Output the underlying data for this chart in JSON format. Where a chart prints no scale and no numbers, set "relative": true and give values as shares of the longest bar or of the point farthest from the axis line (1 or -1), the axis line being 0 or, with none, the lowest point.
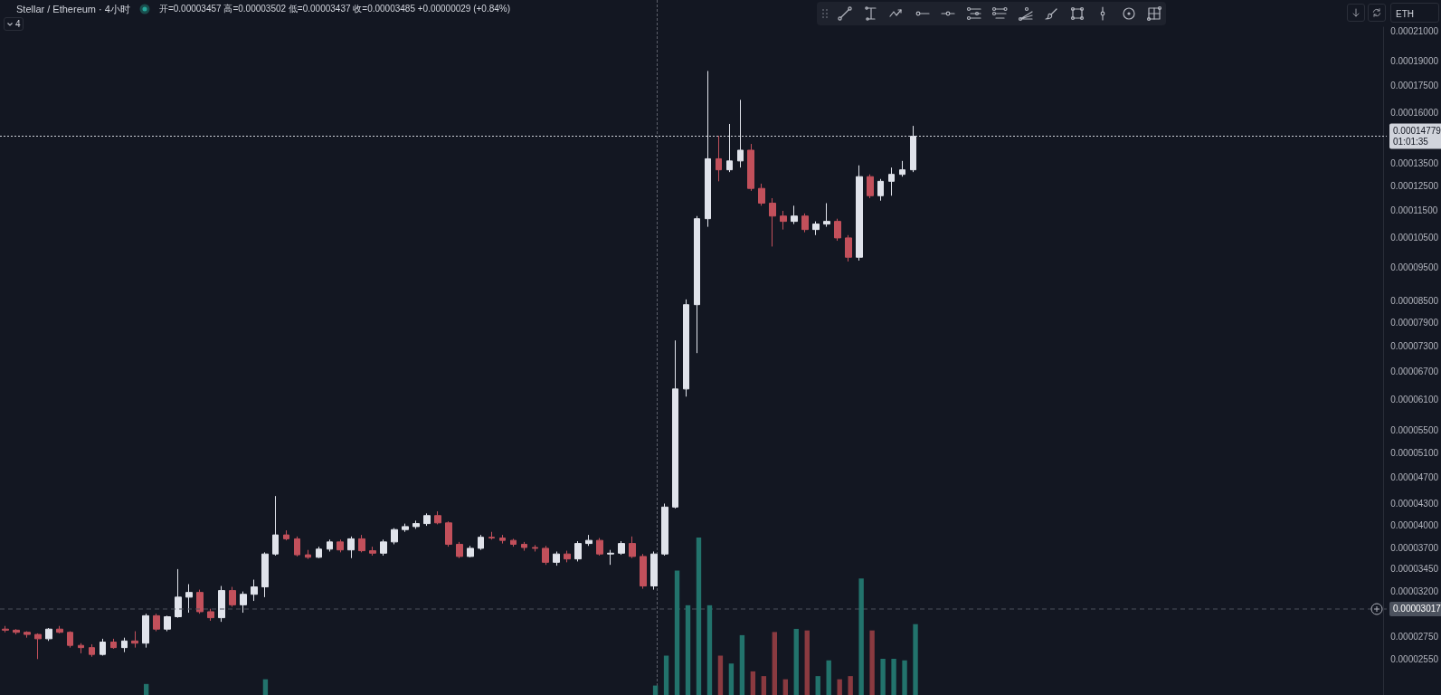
{
  "chart_data": [
    {
      "type": "candlestick",
      "title": "Stellar / Ethereum · 4小时",
      "subtitle": "开=0.00003457 高=0.00003502 低=0.00003437 收=0.00003485 +0.00000029 (+0.84%)",
      "annotations": [
        "4",
        "ETH"
      ],
      "categories": [
        null,
        null,
        null,
        null,
        null,
        null,
        null,
        null,
        null,
        null,
        null,
        null,
        null,
        null,
        null,
        null,
        null,
        null,
        null,
        null,
        null,
        null,
        null,
        null,
        null,
        null,
        null,
        null,
        null,
        null,
        null,
        null,
        null,
        null,
        null,
        null,
        null,
        null,
        null,
        null,
        null,
        null,
        null,
        null,
        null,
        null,
        null,
        null,
        null,
        null,
        null,
        null,
        null,
        null,
        null,
        null,
        null,
        null,
        null,
        null,
        null,
        null,
        null,
        null,
        null,
        null,
        null,
        null,
        null,
        null,
        null,
        null,
        null,
        null,
        null,
        null,
        null,
        null,
        null,
        null,
        null,
        null,
        null,
        null,
        null,
        null,
        null,
        null,
        null,
        null,
        null,
        null,
        null,
        null,
        null,
        null,
        null,
        null,
        null,
        null,
        null,
        null,
        null,
        null,
        null,
        null,
        null,
        null,
        null,
        null,
        null,
        null,
        null,
        null,
        null,
        null,
        null,
        null,
        null,
        null,
        null,
        null,
        null,
        null,
        null,
        null,
        null,
        null
      ],
      "ohlc": [
        [
          2.82e-05,
          2.85e-05,
          2.79e-05,
          2.81e-05
        ],
        [
          2.81e-05,
          2.82e-05,
          2.77e-05,
          2.79e-05
        ],
        [
          2.79e-05,
          2.8e-05,
          2.74e-05,
          2.77e-05
        ],
        [
          2.77e-05,
          2.78e-05,
          2.55e-05,
          2.73e-05
        ],
        [
          2.73e-05,
          2.83e-05,
          2.71e-05,
          2.82e-05
        ],
        [
          2.82e-05,
          2.85e-05,
          2.78e-05,
          2.79e-05
        ],
        [
          2.79e-05,
          2.8e-05,
          2.65e-05,
          2.67e-05
        ],
        [
          2.67e-05,
          2.69e-05,
          2.6e-05,
          2.65e-05
        ],
        [
          2.65e-05,
          2.68e-05,
          2.57e-05,
          2.59e-05
        ],
        [
          2.59e-05,
          2.73e-05,
          2.58e-05,
          2.7e-05
        ],
        [
          2.7e-05,
          2.73e-05,
          2.64e-05,
          2.65e-05
        ],
        [
          2.65e-05,
          2.74e-05,
          2.61e-05,
          2.71e-05
        ],
        [
          2.71e-05,
          2.8e-05,
          2.65e-05,
          2.69e-05
        ],
        [
          2.69e-05,
          2.97e-05,
          2.65e-05,
          2.95e-05
        ],
        [
          2.95e-05,
          2.97e-05,
          2.8e-05,
          2.82e-05
        ],
        [
          2.82e-05,
          2.95e-05,
          2.8e-05,
          2.94e-05
        ],
        [
          2.94e-05,
          3.45e-05,
          2.93e-05,
          3.14e-05
        ],
        [
          3.14e-05,
          3.28e-05,
          2.98e-05,
          3.19e-05
        ],
        [
          3.19e-05,
          3.22e-05,
          2.97e-05,
          2.99e-05
        ],
        [
          2.99e-05,
          3.02e-05,
          2.9e-05,
          2.93e-05
        ],
        [
          2.93e-05,
          3.26e-05,
          2.89e-05,
          3.21e-05
        ],
        [
          3.21e-05,
          3.25e-05,
          3.04e-05,
          3.06e-05
        ],
        [
          3.06e-05,
          3.2e-05,
          2.98e-05,
          3.17e-05
        ],
        [
          3.17e-05,
          3.33e-05,
          3.1e-05,
          3.25e-05
        ],
        [
          3.25e-05,
          3.65e-05,
          3.14e-05,
          3.63e-05
        ],
        [
          3.63e-05,
          4.41e-05,
          3.61e-05,
          3.87e-05
        ],
        [
          3.87e-05,
          3.93e-05,
          3.8e-05,
          3.82e-05
        ],
        [
          3.82e-05,
          3.85e-05,
          3.6e-05,
          3.62e-05
        ],
        [
          3.62e-05,
          3.68e-05,
          3.57e-05,
          3.59e-05
        ],
        [
          3.59e-05,
          3.72e-05,
          3.58e-05,
          3.69e-05
        ],
        [
          3.69e-05,
          3.81e-05,
          3.66e-05,
          3.78e-05
        ],
        [
          3.78e-05,
          3.81e-05,
          3.65e-05,
          3.68e-05
        ],
        [
          3.68e-05,
          3.85e-05,
          3.58e-05,
          3.82e-05
        ],
        [
          3.82e-05,
          3.87e-05,
          3.65e-05,
          3.67e-05
        ],
        [
          3.67e-05,
          3.72e-05,
          3.61e-05,
          3.64e-05
        ],
        [
          3.64e-05,
          3.81e-05,
          3.61e-05,
          3.78e-05
        ],
        [
          3.78e-05,
          3.96e-05,
          3.75e-05,
          3.94e-05
        ],
        [
          3.94e-05,
          4.02e-05,
          3.91e-05,
          3.98e-05
        ],
        [
          3.98e-05,
          4.06e-05,
          3.95e-05,
          4.02e-05
        ],
        [
          4.02e-05,
          4.16e-05,
          3.99e-05,
          4.13e-05
        ],
        [
          4.13e-05,
          4.19e-05,
          4.01e-05,
          4.03e-05
        ],
        [
          4.03e-05,
          4.05e-05,
          3.72e-05,
          3.75e-05
        ],
        [
          3.75e-05,
          3.78e-05,
          3.58e-05,
          3.6e-05
        ],
        [
          3.6e-05,
          3.73e-05,
          3.59e-05,
          3.7e-05
        ],
        [
          3.7e-05,
          3.87e-05,
          3.68e-05,
          3.84e-05
        ],
        [
          3.84e-05,
          3.91e-05,
          3.81e-05,
          3.83e-05
        ],
        [
          3.83e-05,
          3.87e-05,
          3.76e-05,
          3.8e-05
        ],
        [
          3.8e-05,
          3.82e-05,
          3.72e-05,
          3.75e-05
        ],
        [
          3.75e-05,
          3.78e-05,
          3.67e-05,
          3.71e-05
        ],
        [
          3.71e-05,
          3.74e-05,
          3.66e-05,
          3.7e-05
        ],
        [
          3.7e-05,
          3.73e-05,
          3.5e-05,
          3.53e-05
        ],
        [
          3.53e-05,
          3.66e-05,
          3.49e-05,
          3.63e-05
        ],
        [
          3.63e-05,
          3.67e-05,
          3.53e-05,
          3.57e-05
        ],
        [
          3.57e-05,
          3.79e-05,
          3.54e-05,
          3.76e-05
        ],
        [
          3.76e-05,
          3.87e-05,
          3.73e-05,
          3.8e-05
        ],
        [
          3.8e-05,
          3.83e-05,
          3.61e-05,
          3.63e-05
        ],
        [
          3.63e-05,
          3.68e-05,
          3.5e-05,
          3.64e-05
        ],
        [
          3.64e-05,
          3.79e-05,
          3.62e-05,
          3.76e-05
        ],
        [
          3.76e-05,
          3.85e-05,
          3.58e-05,
          3.6e-05
        ],
        [
          3.6e-05,
          3.63e-05,
          3.23e-05,
          3.26e-05
        ],
        [
          3.26e-05,
          3.66e-05,
          3.22e-05,
          3.63e-05
        ],
        [
          3.63e-05,
          4.3e-05,
          3.61e-05,
          4.25e-05
        ],
        [
          4.25e-05,
          7.44e-05,
          4.23e-05,
          6.32e-05
        ],
        [
          6.32e-05,
          8.54e-05,
          6.16e-05,
          8.39e-05
        ],
        [
          8.39e-05,
          0.000113,
          7.13e-05,
          0.000112
        ],
        [
          0.000112,
          0.000184,
          0.000109,
          0.000137
        ],
        [
          0.000137,
          0.000148,
          0.000127,
          0.000132
        ],
        [
          0.000132,
          0.000154,
          0.000131,
          0.000136
        ],
        [
          0.000136,
          0.000167,
          0.000133,
          0.000141
        ],
        [
          0.000141,
          0.000144,
          0.000123,
          0.000124
        ],
        [
          0.000124,
          0.000126,
          0.000117,
          0.000118
        ],
        [
          0.000118,
          0.00012,
          0.000102,
          0.000113
        ],
        [
          0.000113,
          0.000115,
          0.000108,
          0.000111
        ],
        [
          0.000111,
          0.000117,
          0.00011,
          0.000113
        ],
        [
          0.000113,
          0.000114,
          0.000107,
          0.000108
        ],
        [
          0.000108,
          0.000111,
          0.000106,
          0.00011
        ],
        [
          0.00011,
          0.000118,
          0.000109,
          0.000111
        ],
        [
          0.000111,
          0.000112,
          0.000104,
          0.000105
        ],
        [
          0.000105,
          0.000106,
          9.7e-05,
          9.84e-05
        ],
        [
          9.84e-05,
          0.000134,
          9.73e-05,
          0.000129
        ],
        [
          0.000129,
          0.00013,
          0.00012,
          0.000121
        ],
        [
          0.000121,
          0.000128,
          0.000119,
          0.000127
        ],
        [
          0.000127,
          0.000133,
          0.000121,
          0.00013
        ],
        [
          0.00013,
          0.000136,
          0.000129,
          0.000132
        ],
        [
          0.000132,
          0.000153,
          0.000131,
          0.00014779
        ],
        null,
        null,
        null,
        null,
        null,
        null,
        null,
        null,
        null,
        null,
        null,
        null,
        null,
        null,
        null,
        null,
        null,
        null,
        null,
        null,
        null,
        null,
        null,
        null,
        null,
        null,
        null,
        null,
        null,
        null,
        null,
        null,
        null,
        null,
        null,
        null,
        null,
        null,
        null,
        null,
        null,
        null,
        null
      ],
      "colors": [
        "#c2505b",
        "#c2505b",
        "#c2505b",
        "#c2505b",
        "#e0e3eb",
        "#c2505b",
        "#c2505b",
        "#c2505b",
        "#c2505b",
        "#e0e3eb",
        "#c2505b",
        "#e0e3eb",
        "#c2505b",
        "#e0e3eb",
        "#c2505b",
        "#e0e3eb",
        "#e0e3eb",
        "#e0e3eb",
        "#c2505b",
        "#c2505b",
        "#e0e3eb",
        "#c2505b",
        "#e0e3eb",
        "#e0e3eb",
        "#e0e3eb",
        "#e0e3eb",
        "#c2505b",
        "#c2505b",
        "#c2505b",
        "#e0e3eb",
        "#e0e3eb",
        "#c2505b",
        "#e0e3eb",
        "#c2505b",
        "#c2505b",
        "#e0e3eb",
        "#e0e3eb",
        "#e0e3eb",
        "#e0e3eb",
        "#e0e3eb",
        "#c2505b",
        "#c2505b",
        "#c2505b",
        "#e0e3eb",
        "#e0e3eb",
        "#c2505b",
        "#c2505b",
        "#c2505b",
        "#c2505b",
        "#c2505b",
        "#c2505b",
        "#e0e3eb",
        "#c2505b",
        "#e0e3eb",
        "#e0e3eb",
        "#c2505b",
        "#e0e3eb",
        "#e0e3eb",
        "#c2505b",
        "#c2505b",
        "#e0e3eb",
        "#e0e3eb",
        "#e0e3eb",
        "#e0e3eb",
        "#e0e3eb",
        "#e0e3eb",
        "#c2505b",
        "#e0e3eb",
        "#e0e3eb",
        "#c2505b",
        "#c2505b",
        "#c2505b",
        "#c2505b",
        "#e0e3eb",
        "#c2505b",
        "#e0e3eb",
        "#e0e3eb",
        "#c2505b",
        "#c2505b",
        "#e0e3eb",
        "#c2505b",
        "#e0e3eb",
        "#e0e3eb",
        "#e0e3eb",
        "#e0e3eb",
        null,
        null,
        null,
        null,
        null,
        null,
        null,
        null,
        null,
        null,
        null,
        null,
        null,
        null,
        null,
        null,
        null,
        null,
        null,
        null,
        null,
        null,
        null,
        null,
        null,
        null,
        null,
        null,
        null,
        null,
        null,
        null,
        null,
        null,
        null,
        null,
        null,
        null,
        null,
        null,
        null,
        null,
        null
      ],
      "log": true,
      "ylim": [
        2.26e-05,
        0.0002132
      ],
      "yticks": [
        {
          "value": 0.00021,
          "label": "0.00021000"
        },
        {
          "value": 0.00019,
          "label": "0.00019000"
        },
        {
          "value": 0.000175,
          "label": "0.00017500"
        },
        {
          "value": 0.00016,
          "label": "0.00016000"
        },
        {
          "value": 0.000135,
          "label": "0.00013500"
        },
        {
          "value": 0.000125,
          "label": "0.00012500"
        },
        {
          "value": 0.000115,
          "label": "0.00011500"
        },
        {
          "value": 0.000105,
          "label": "0.00010500"
        },
        {
          "value": 9.5e-05,
          "label": "0.00009500"
        },
        {
          "value": 8.5e-05,
          "label": "0.00008500"
        },
        {
          "value": 7.9e-05,
          "label": "0.00007900"
        },
        {
          "value": 7.3e-05,
          "label": "0.00007300"
        },
        {
          "value": 6.7e-05,
          "label": "0.00006700"
        },
        {
          "value": 6.1e-05,
          "label": "0.00006100"
        },
        {
          "value": 5.5e-05,
          "label": "0.00005500"
        },
        {
          "value": 5.1e-05,
          "label": "0.00005100"
        },
        {
          "value": 4.7e-05,
          "label": "0.00004700"
        },
        {
          "value": 4.3e-05,
          "label": "0.00004300"
        },
        {
          "value": 4e-05,
          "label": "0.00004000"
        },
        {
          "value": 3.7e-05,
          "label": "0.00003700"
        },
        {
          "value": 3.45e-05,
          "label": "0.00003450"
        },
        {
          "value": 3.2e-05,
          "label": "0.00003200"
        },
        {
          "value": 2.75e-05,
          "label": "0.00002750"
        },
        {
          "value": 2.55e-05,
          "label": "0.00002550"
        }
      ],
      "tick_labels": "y",
      "ref_lines": [
        {
          "axis": "y",
          "value": 0.00014779,
          "label": "0.00014779\n01:01:35",
          "color": "#d1d4dc",
          "line_style": "dotted"
        },
        {
          "axis": "y",
          "value": 3.017e-05,
          "label": "0.00003017",
          "color": "#4c525e",
          "line_style": "dashed"
        }
      ]
    },
    {
      "type": "bar",
      "relative": true,
      "tick_labels": false,
      "categories": [
        null,
        null,
        null,
        null,
        null,
        null,
        null,
        null,
        null,
        null,
        null,
        null,
        null,
        null,
        null,
        null,
        null,
        null,
        null,
        null,
        null,
        null,
        null,
        null,
        null,
        null,
        null,
        null,
        null,
        null,
        null,
        null,
        null,
        null,
        null,
        null,
        null,
        null,
        null,
        null,
        null,
        null,
        null,
        null,
        null,
        null,
        null,
        null,
        null,
        null,
        null,
        null,
        null,
        null,
        null,
        null,
        null,
        null,
        null,
        null,
        null,
        null,
        null,
        null,
        null,
        null,
        null,
        null,
        null,
        null,
        null,
        null,
        null,
        null,
        null,
        null,
        null,
        null,
        null,
        null,
        null,
        null,
        null,
        null,
        null,
        null,
        null,
        null,
        null,
        null,
        null,
        null,
        null,
        null,
        null,
        null,
        null,
        null,
        null,
        null,
        null,
        null,
        null,
        null,
        null,
        null,
        null,
        null,
        null,
        null,
        null,
        null,
        null,
        null,
        null,
        null,
        null,
        null,
        null,
        null,
        null,
        null,
        null,
        null,
        null,
        null,
        null,
        null
      ],
      "series": [
        {
          "color": "#22736c",
          "values": [
            null,
            null,
            null,
            null,
            null,
            null,
            null,
            null,
            null,
            null,
            null,
            null,
            null,
            0.07,
            null,
            null,
            null,
            null,
            null,
            null,
            null,
            null,
            null,
            null,
            0.1,
            null,
            null,
            null,
            null,
            null,
            null,
            null,
            null,
            null,
            null,
            null,
            null,
            null,
            null,
            null,
            null,
            null,
            null,
            null,
            null,
            null,
            null,
            null,
            null,
            null,
            null,
            null,
            null,
            null,
            null,
            null,
            null,
            null,
            null,
            null,
            0.06,
            0.25,
            0.79,
            0.57,
            1,
            0.57,
            null,
            0.2,
            0.38,
            null,
            null,
            null,
            null,
            0.42,
            null,
            0.12,
            0.22,
            null,
            null,
            0.74,
            null,
            0.23,
            0.23,
            0.22,
            0.45,
            null,
            null,
            null,
            null,
            null,
            null,
            null,
            null,
            null,
            null,
            null,
            null,
            null,
            null,
            null,
            null,
            null,
            null,
            null,
            null,
            null,
            null,
            null,
            null,
            null,
            null,
            null,
            null,
            null,
            null,
            null,
            null,
            null,
            null,
            null,
            null,
            null,
            null,
            null,
            null,
            null,
            null,
            null
          ]
        },
        {
          "color": "#8a3a40",
          "values": [
            null,
            null,
            null,
            null,
            null,
            null,
            null,
            null,
            null,
            null,
            null,
            null,
            null,
            null,
            null,
            null,
            null,
            null,
            null,
            null,
            null,
            null,
            null,
            null,
            null,
            null,
            null,
            null,
            null,
            null,
            null,
            null,
            null,
            null,
            null,
            null,
            null,
            null,
            null,
            null,
            null,
            null,
            null,
            null,
            null,
            null,
            null,
            null,
            null,
            null,
            null,
            null,
            null,
            null,
            null,
            null,
            null,
            null,
            null,
            null,
            null,
            null,
            null,
            null,
            null,
            null,
            0.25,
            null,
            null,
            0.15,
            0.12,
            0.4,
            0.1,
            null,
            0.41,
            null,
            null,
            0.1,
            0.12,
            null,
            0.41,
            null,
            null,
            null,
            null,
            null,
            null,
            null,
            null,
            null,
            null,
            null,
            null,
            null,
            null,
            null,
            null,
            null,
            null,
            null,
            null,
            null,
            null,
            null,
            null,
            null,
            null,
            null,
            null,
            null,
            null,
            null,
            null,
            null,
            null,
            null,
            null,
            null,
            null,
            null,
            null,
            null,
            null,
            null,
            null,
            null,
            null,
            null
          ]
        }
      ]
    }
  ]
}
